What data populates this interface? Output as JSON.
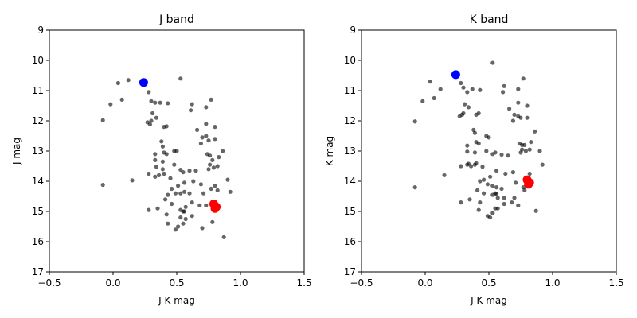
{
  "chart_data": [
    {
      "type": "scatter",
      "title": "J band",
      "xlabel": "J-K mag",
      "ylabel": "J mag",
      "xlim": [
        -0.5,
        1.5
      ],
      "ylim": [
        17,
        9
      ],
      "y_inverted": true,
      "grid": false,
      "xticks": [
        -0.5,
        0.0,
        0.5,
        1.0,
        1.5
      ],
      "xtick_labels": [
        "−0.5",
        "0.0",
        "0.5",
        "1.0",
        "1.5"
      ],
      "yticks": [
        9,
        10,
        11,
        12,
        13,
        14,
        15,
        16,
        17
      ],
      "ytick_labels": [
        "9",
        "10",
        "11",
        "12",
        "13",
        "14",
        "15",
        "16",
        "17"
      ],
      "series": [
        {
          "color": "#000000",
          "opacity": 0.6,
          "marker": "small-circle",
          "points": [
            [
              0.04,
              10.75
            ],
            [
              0.12,
              10.65
            ],
            [
              -0.02,
              11.45
            ],
            [
              0.07,
              11.3
            ],
            [
              -0.08,
              11.98
            ],
            [
              -0.08,
              14.12
            ],
            [
              0.15,
              13.97
            ],
            [
              0.28,
              11.05
            ],
            [
              0.3,
              11.35
            ],
            [
              0.33,
              11.4
            ],
            [
              0.37,
              11.4
            ],
            [
              0.43,
              11.42
            ],
            [
              0.31,
              11.75
            ],
            [
              0.34,
              11.9
            ],
            [
              0.27,
              12.05
            ],
            [
              0.29,
              12.12
            ],
            [
              0.3,
              12.0
            ],
            [
              0.4,
              12.2
            ],
            [
              0.42,
              12.18
            ],
            [
              0.53,
              10.6
            ],
            [
              0.62,
              11.45
            ],
            [
              0.61,
              11.65
            ],
            [
              0.73,
              11.55
            ],
            [
              0.77,
              11.3
            ],
            [
              0.66,
              12.3
            ],
            [
              0.73,
              12.1
            ],
            [
              0.8,
              12.2
            ],
            [
              0.7,
              12.55
            ],
            [
              0.73,
              12.5
            ],
            [
              0.75,
              12.65
            ],
            [
              0.8,
              12.6
            ],
            [
              0.69,
              12.75
            ],
            [
              0.38,
              12.68
            ],
            [
              0.39,
              12.85
            ],
            [
              0.48,
              13.0
            ],
            [
              0.5,
              13.0
            ],
            [
              0.33,
              13.1
            ],
            [
              0.4,
              13.05
            ],
            [
              0.42,
              13.1
            ],
            [
              0.33,
              13.3
            ],
            [
              0.39,
              13.35
            ],
            [
              0.48,
              13.45
            ],
            [
              0.34,
              13.52
            ],
            [
              0.39,
              13.6
            ],
            [
              0.53,
              13.62
            ],
            [
              0.55,
              13.7
            ],
            [
              0.6,
              13.65
            ],
            [
              0.74,
              13.1
            ],
            [
              0.76,
              13.15
            ],
            [
              0.78,
              13.3
            ],
            [
              0.83,
              13.2
            ],
            [
              0.86,
              13.0
            ],
            [
              0.76,
              13.45
            ],
            [
              0.82,
              13.5
            ],
            [
              0.75,
              13.6
            ],
            [
              0.79,
              13.55
            ],
            [
              0.28,
              13.75
            ],
            [
              0.33,
              13.85
            ],
            [
              0.36,
              13.8
            ],
            [
              0.4,
              13.75
            ],
            [
              0.45,
              13.9
            ],
            [
              0.65,
              13.65
            ],
            [
              0.56,
              14.05
            ],
            [
              0.63,
              14.0
            ],
            [
              0.69,
              14.1
            ],
            [
              0.51,
              14.15
            ],
            [
              0.46,
              14.25
            ],
            [
              0.43,
              14.45
            ],
            [
              0.49,
              14.4
            ],
            [
              0.53,
              14.4
            ],
            [
              0.56,
              14.35
            ],
            [
              0.6,
              14.4
            ],
            [
              0.71,
              14.4
            ],
            [
              0.77,
              14.25
            ],
            [
              0.8,
              14.15
            ],
            [
              0.82,
              14.3
            ],
            [
              0.9,
              13.95
            ],
            [
              0.92,
              14.35
            ],
            [
              0.35,
              14.9
            ],
            [
              0.28,
              14.95
            ],
            [
              0.41,
              14.6
            ],
            [
              0.46,
              14.75
            ],
            [
              0.53,
              14.95
            ],
            [
              0.55,
              15.0
            ],
            [
              0.56,
              15.0
            ],
            [
              0.57,
              14.85
            ],
            [
              0.62,
              14.7
            ],
            [
              0.68,
              14.8
            ],
            [
              0.73,
              14.8
            ],
            [
              0.42,
              15.1
            ],
            [
              0.53,
              15.2
            ],
            [
              0.57,
              15.25
            ],
            [
              0.62,
              15.15
            ],
            [
              0.43,
              15.4
            ],
            [
              0.49,
              15.6
            ],
            [
              0.51,
              15.5
            ],
            [
              0.55,
              15.4
            ],
            [
              0.7,
              15.55
            ],
            [
              0.78,
              15.35
            ],
            [
              0.87,
              15.85
            ]
          ]
        },
        {
          "color": "#0000ff",
          "marker": "large-circle",
          "points": [
            [
              0.24,
              10.73
            ]
          ]
        },
        {
          "color": "#ff0000",
          "marker": "large-circle",
          "points": [
            [
              0.79,
              14.75
            ],
            [
              0.81,
              14.85
            ],
            [
              0.8,
              14.9
            ]
          ]
        }
      ]
    },
    {
      "type": "scatter",
      "title": "K band",
      "xlabel": "J-K mag",
      "ylabel": "K mag",
      "xlim": [
        -0.5,
        1.5
      ],
      "ylim": [
        17,
        9
      ],
      "y_inverted": true,
      "grid": false,
      "xticks": [
        -0.5,
        0.0,
        0.5,
        1.0,
        1.5
      ],
      "xtick_labels": [
        "−0.5",
        "0.0",
        "0.5",
        "1.0",
        "1.5"
      ],
      "yticks": [
        9,
        10,
        11,
        12,
        13,
        14,
        15,
        16,
        17
      ],
      "ytick_labels": [
        "9",
        "10",
        "11",
        "12",
        "13",
        "14",
        "15",
        "16",
        "17"
      ],
      "series": [
        {
          "color": "#000000",
          "opacity": 0.6,
          "marker": "small-circle",
          "points": [
            [
              0.04,
              10.7
            ],
            [
              0.12,
              10.95
            ],
            [
              -0.02,
              11.35
            ],
            [
              0.07,
              11.25
            ],
            [
              -0.08,
              12.02
            ],
            [
              -0.08,
              14.2
            ],
            [
              0.15,
              13.8
            ],
            [
              0.28,
              10.75
            ],
            [
              0.3,
              10.9
            ],
            [
              0.33,
              11.05
            ],
            [
              0.37,
              10.95
            ],
            [
              0.43,
              10.98
            ],
            [
              0.31,
              11.45
            ],
            [
              0.34,
              11.55
            ],
            [
              0.27,
              11.85
            ],
            [
              0.29,
              11.8
            ],
            [
              0.3,
              11.75
            ],
            [
              0.4,
              11.8
            ],
            [
              0.42,
              11.75
            ],
            [
              0.53,
              10.08
            ],
            [
              0.62,
              10.85
            ],
            [
              0.61,
              11.05
            ],
            [
              0.73,
              10.95
            ],
            [
              0.77,
              10.6
            ],
            [
              0.66,
              11.6
            ],
            [
              0.73,
              11.4
            ],
            [
              0.8,
              11.5
            ],
            [
              0.7,
              11.8
            ],
            [
              0.73,
              11.85
            ],
            [
              0.75,
              11.9
            ],
            [
              0.8,
              11.9
            ],
            [
              0.69,
              12.0
            ],
            [
              0.38,
              12.3
            ],
            [
              0.39,
              12.4
            ],
            [
              0.48,
              12.5
            ],
            [
              0.5,
              12.55
            ],
            [
              0.33,
              12.82
            ],
            [
              0.4,
              12.7
            ],
            [
              0.42,
              12.75
            ],
            [
              0.33,
              13.02
            ],
            [
              0.39,
              13.05
            ],
            [
              0.48,
              13.0
            ],
            [
              0.34,
              13.42
            ],
            [
              0.39,
              13.45
            ],
            [
              0.53,
              13.1
            ],
            [
              0.55,
              13.05
            ],
            [
              0.6,
              13.12
            ],
            [
              0.74,
              12.75
            ],
            [
              0.76,
              12.8
            ],
            [
              0.78,
              12.8
            ],
            [
              0.83,
              12.7
            ],
            [
              0.86,
              12.35
            ],
            [
              0.76,
              12.95
            ],
            [
              0.82,
              12.95
            ],
            [
              0.75,
              13.05
            ],
            [
              0.79,
              13.0
            ],
            [
              0.28,
              13.5
            ],
            [
              0.33,
              13.45
            ],
            [
              0.36,
              13.5
            ],
            [
              0.4,
              13.4
            ],
            [
              0.45,
              13.52
            ],
            [
              0.65,
              13.15
            ],
            [
              0.56,
              13.65
            ],
            [
              0.63,
              13.75
            ],
            [
              0.69,
              13.7
            ],
            [
              0.51,
              13.85
            ],
            [
              0.46,
              13.95
            ],
            [
              0.43,
              14.0
            ],
            [
              0.49,
              14.1
            ],
            [
              0.53,
              14.15
            ],
            [
              0.56,
              14.2
            ],
            [
              0.6,
              14.25
            ],
            [
              0.71,
              14.05
            ],
            [
              0.77,
              14.2
            ],
            [
              0.8,
              14.1
            ],
            [
              0.82,
              13.75
            ],
            [
              0.9,
              13.0
            ],
            [
              0.92,
              13.45
            ],
            [
              0.35,
              14.6
            ],
            [
              0.28,
              14.7
            ],
            [
              0.41,
              14.3
            ],
            [
              0.46,
              14.4
            ],
            [
              0.53,
              14.45
            ],
            [
              0.55,
              14.4
            ],
            [
              0.56,
              14.42
            ],
            [
              0.57,
              14.55
            ],
            [
              0.62,
              14.55
            ],
            [
              0.68,
              14.7
            ],
            [
              0.73,
              14.8
            ],
            [
              0.42,
              14.95
            ],
            [
              0.53,
              15.05
            ],
            [
              0.57,
              14.9
            ],
            [
              0.62,
              14.75
            ],
            [
              0.43,
              14.7
            ],
            [
              0.49,
              15.15
            ],
            [
              0.51,
              15.2
            ],
            [
              0.55,
              14.9
            ],
            [
              0.7,
              14.55
            ],
            [
              0.78,
              14.3
            ],
            [
              0.87,
              14.98
            ]
          ]
        },
        {
          "color": "#0000ff",
          "marker": "large-circle",
          "points": [
            [
              0.24,
              10.47
            ]
          ]
        },
        {
          "color": "#ff0000",
          "marker": "large-circle",
          "points": [
            [
              0.8,
              13.95
            ],
            [
              0.82,
              14.05
            ],
            [
              0.81,
              14.1
            ]
          ]
        }
      ]
    }
  ]
}
